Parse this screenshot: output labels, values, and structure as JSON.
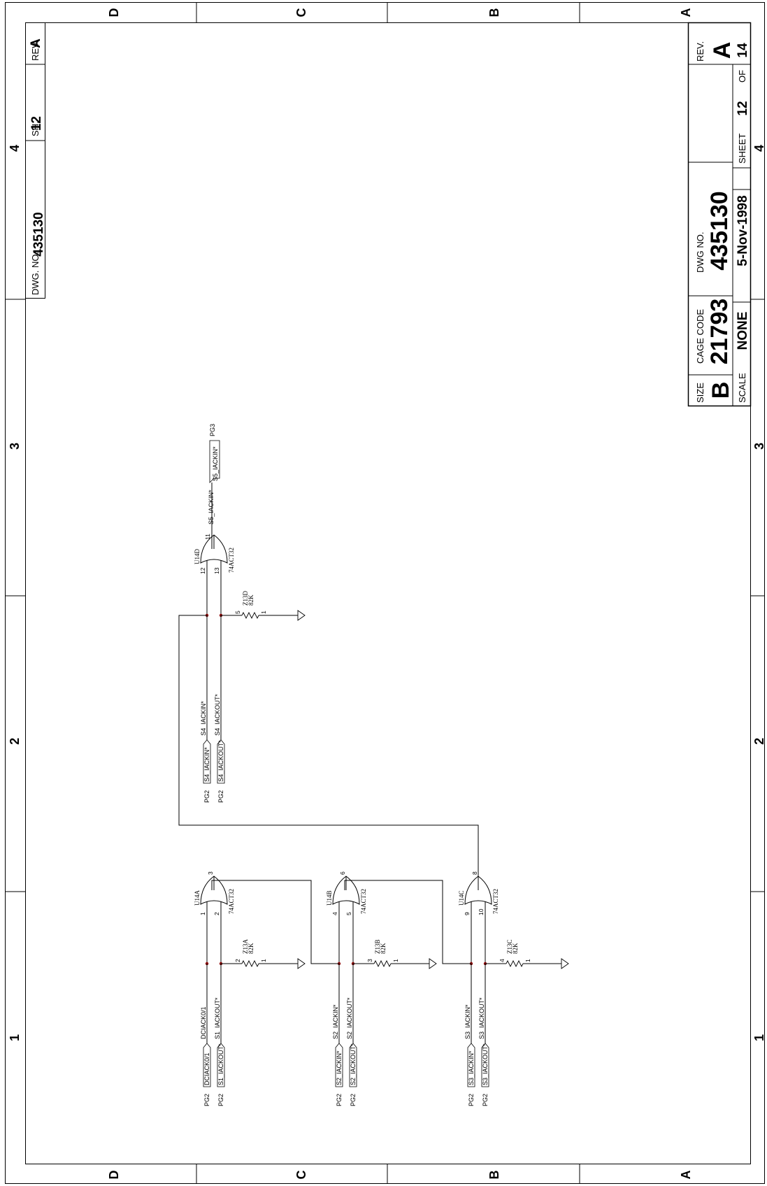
{
  "frame": {
    "zones_vertical": [
      "D",
      "C",
      "B",
      "A"
    ],
    "zones_horizontal": [
      "1",
      "2",
      "3",
      "4"
    ]
  },
  "header_block": {
    "dwg_label": "DWG. NO.",
    "dwg_no": "435130",
    "sh_label": "SH.",
    "sh": "12",
    "rev_label": "REV.",
    "rev": "A"
  },
  "title_block": {
    "size_label": "SIZE",
    "size": "B",
    "cage_label": "CAGE CODE",
    "cage": "21793",
    "dwg_label": "DWG NO.",
    "dwg_no": "435130",
    "rev_label": "REV.",
    "rev": "A",
    "scale_label": "SCALE",
    "scale": "NONE",
    "date": "5-Nov-1998",
    "sheet_label": "SHEET",
    "sheet": "12",
    "of_label": "OF",
    "total": "14"
  },
  "gates": [
    {
      "ref": "U14A",
      "part": "74ACT32",
      "in1": "1",
      "in2": "2",
      "out": "3",
      "resistor": "Z13A",
      "value": "82K",
      "r_pin_in": "2",
      "r_pin_gnd": "1",
      "ports": [
        {
          "text": "DCIACK0/1",
          "sheet": "PG2"
        },
        {
          "text": "S1_IACKOUT*",
          "sheet": "PG2"
        }
      ],
      "nets": [
        "DCIACK0/1",
        "S1_IACKOUT*"
      ]
    },
    {
      "ref": "U14B",
      "part": "74ACT32",
      "in1": "4",
      "in2": "5",
      "out": "6",
      "resistor": "Z13B",
      "value": "82K",
      "r_pin_in": "3",
      "r_pin_gnd": "1",
      "ports": [
        {
          "text": "S2_IACKIN*",
          "sheet": "PG2"
        },
        {
          "text": "S2_IACKOUT*",
          "sheet": "PG2"
        }
      ],
      "nets": [
        "S2_IACKIN*",
        "S2_IACKOUT*"
      ]
    },
    {
      "ref": "U14C",
      "part": "74ACT32",
      "in1": "9",
      "in2": "10",
      "out": "8",
      "resistor": "Z13C",
      "value": "82K",
      "r_pin_in": "4",
      "r_pin_gnd": "1",
      "ports": [
        {
          "text": "S3_IACKIN*",
          "sheet": "PG2"
        },
        {
          "text": "S3_IACKOUT*",
          "sheet": "PG2"
        }
      ],
      "nets": [
        "S3_IACKIN*",
        "S3_IACKOUT*"
      ]
    },
    {
      "ref": "U14D",
      "part": "74ACT32",
      "in1": "12",
      "in2": "13",
      "out": "11",
      "resistor": "Z13D",
      "value": "82K",
      "r_pin_in": "5",
      "r_pin_gnd": "1",
      "ports": [
        {
          "text": "S4_IACKIN*",
          "sheet": "PG2"
        },
        {
          "text": "S4_IACKOUT*",
          "sheet": "PG2"
        }
      ],
      "nets": [
        "S4_IACKIN*",
        "S4_IACKOUT*"
      ]
    }
  ],
  "output_port": {
    "net": "S5_IACKIN*",
    "text": "S5_IACKIN*",
    "sheet": "PG3"
  }
}
